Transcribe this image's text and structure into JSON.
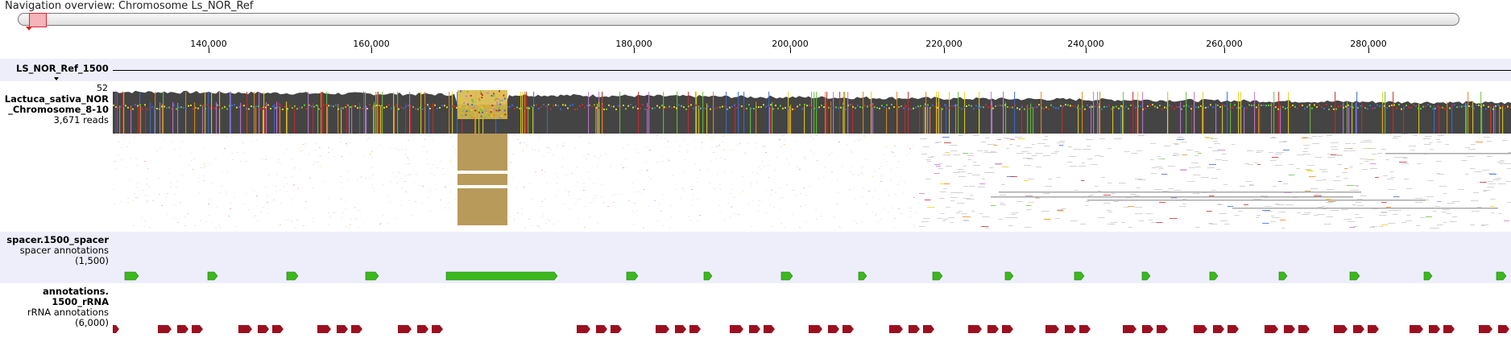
{
  "navigation": {
    "title": "Navigation overview: Chromosome Ls_NOR_Ref"
  },
  "ruler": {
    "ticks": [
      "140,000",
      "160,000",
      "180,000",
      "200,000",
      "220,000",
      "240,000",
      "260,000",
      "280,000"
    ]
  },
  "reference_track": {
    "name": "LS_NOR_Ref_1500",
    "collapse_icon": "triangle-down-icon"
  },
  "reads_track": {
    "max_coverage": "52",
    "name_line1": "Lactuca_sativa_NOR",
    "name_line2": "_Chromosome_8-10",
    "reads_count": "3,671 reads"
  },
  "spacer_track": {
    "name": "spacer.1500_spacer",
    "subtitle": "spacer annotations",
    "count": "(1,500)",
    "color": "#3cb81e"
  },
  "rrna_track": {
    "name_line1": "annotations.",
    "name_line2": "1500_rRNA",
    "subtitle": "rRNA annotations",
    "count": "(6,000)",
    "color": "#9b1020"
  },
  "colors": {
    "track_band": "#eeeefb",
    "coverage": "#444444"
  }
}
